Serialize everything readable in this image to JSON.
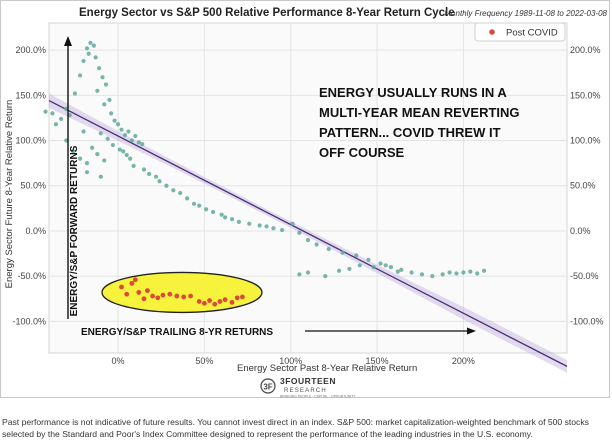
{
  "chart_data": {
    "type": "scatter",
    "title": "Energy Sector vs S&P 500 Relative Performance 8-Year Return Cycle",
    "subtitle": "Monthly Frequency 1989-11-08 to 2022-03-08",
    "xlabel": "Energy Sector Past 8-Year Relative Return",
    "ylabel": "Energy Sector Future 8-Year Relative Return",
    "xlim": [
      -0.4,
      2.6
    ],
    "ylim": [
      -1.35,
      2.3
    ],
    "x_ticks": [
      "0%",
      "50%",
      "100%",
      "150%",
      "200%"
    ],
    "y_ticks": [
      "200.0%",
      "150.0%",
      "100.0%",
      "50.0%",
      "0.0%",
      "-50.0%",
      "-100.0%"
    ],
    "grid": true,
    "legend_position": "top-right",
    "regression": {
      "slope": -0.98,
      "intercept": 1.05
    },
    "series": [
      {
        "name": "",
        "color": "#5fa89a",
        "points": [
          [
            -0.42,
            1.32
          ],
          [
            -0.38,
            1.3
          ],
          [
            -0.33,
            1.24
          ],
          [
            -0.36,
            1.18
          ],
          [
            -0.3,
            1.35
          ],
          [
            -0.28,
            1.28
          ],
          [
            -0.25,
            1.52
          ],
          [
            -0.22,
            1.72
          ],
          [
            -0.2,
            1.88
          ],
          [
            -0.18,
            2.02
          ],
          [
            -0.16,
            2.08
          ],
          [
            -0.14,
            2.05
          ],
          [
            -0.17,
            1.96
          ],
          [
            -0.13,
            1.92
          ],
          [
            -0.11,
            1.8
          ],
          [
            -0.12,
            1.55
          ],
          [
            -0.09,
            1.7
          ],
          [
            -0.07,
            1.62
          ],
          [
            -0.05,
            1.45
          ],
          [
            -0.08,
            1.4
          ],
          [
            -0.04,
            1.3
          ],
          [
            -0.02,
            1.22
          ],
          [
            0.0,
            1.18
          ],
          [
            0.02,
            1.12
          ],
          [
            0.04,
            1.06
          ],
          [
            0.06,
            1.1
          ],
          [
            0.08,
            1.0
          ],
          [
            0.1,
            1.05
          ],
          [
            0.12,
            0.98
          ],
          [
            0.14,
            0.96
          ],
          [
            -0.1,
            1.08
          ],
          [
            -0.06,
            1.02
          ],
          [
            -0.03,
            0.95
          ],
          [
            0.01,
            0.9
          ],
          [
            0.03,
            0.88
          ],
          [
            0.05,
            0.84
          ],
          [
            0.07,
            0.8
          ],
          [
            -0.15,
            0.92
          ],
          [
            -0.12,
            0.85
          ],
          [
            -0.08,
            0.78
          ],
          [
            -0.18,
            0.75
          ],
          [
            -0.22,
            0.8
          ],
          [
            -0.26,
            0.88
          ],
          [
            -0.3,
            1.0
          ],
          [
            -0.2,
            1.1
          ],
          [
            0.09,
            0.72
          ],
          [
            0.15,
            0.68
          ],
          [
            0.18,
            0.63
          ],
          [
            0.22,
            0.6
          ],
          [
            -0.1,
            0.6
          ],
          [
            -0.18,
            0.65
          ],
          [
            0.24,
            0.55
          ],
          [
            0.28,
            0.5
          ],
          [
            0.32,
            0.45
          ],
          [
            0.36,
            0.42
          ],
          [
            0.4,
            0.36
          ],
          [
            0.44,
            0.3
          ],
          [
            0.47,
            0.28
          ],
          [
            0.51,
            0.24
          ],
          [
            0.55,
            0.21
          ],
          [
            0.6,
            0.18
          ],
          [
            0.62,
            0.15
          ],
          [
            0.66,
            0.13
          ],
          [
            0.7,
            0.1
          ],
          [
            0.76,
            0.08
          ],
          [
            0.82,
            0.06
          ],
          [
            0.86,
            0.05
          ],
          [
            0.9,
            0.03
          ],
          [
            0.95,
            0.01
          ],
          [
            1.01,
            0.08
          ],
          [
            1.05,
            -0.02
          ],
          [
            1.1,
            -0.1
          ],
          [
            1.15,
            -0.15
          ],
          [
            1.22,
            -0.2
          ],
          [
            1.3,
            -0.24
          ],
          [
            1.38,
            -0.27
          ],
          [
            1.45,
            -0.32
          ],
          [
            1.52,
            -0.36
          ],
          [
            1.58,
            -0.4
          ],
          [
            1.64,
            -0.43
          ],
          [
            1.7,
            -0.46
          ],
          [
            1.76,
            -0.48
          ],
          [
            1.82,
            -0.5
          ],
          [
            1.88,
            -0.48
          ],
          [
            1.92,
            -0.46
          ],
          [
            1.96,
            -0.47
          ],
          [
            2.0,
            -0.46
          ],
          [
            2.04,
            -0.45
          ],
          [
            2.08,
            -0.47
          ],
          [
            2.12,
            -0.44
          ],
          [
            1.05,
            -0.48
          ],
          [
            1.1,
            -0.46
          ],
          [
            1.2,
            -0.5
          ],
          [
            1.28,
            -0.44
          ],
          [
            1.34,
            -0.42
          ],
          [
            1.4,
            -0.38
          ],
          [
            1.48,
            -0.4
          ],
          [
            1.55,
            -0.38
          ],
          [
            1.62,
            -0.45
          ]
        ]
      },
      {
        "name": "Post COVID",
        "color": "#d94a3a",
        "points": [
          [
            0.02,
            -0.62
          ],
          [
            0.05,
            -0.7
          ],
          [
            0.08,
            -0.58
          ],
          [
            0.1,
            -0.54
          ],
          [
            0.12,
            -0.68
          ],
          [
            0.15,
            -0.75
          ],
          [
            0.17,
            -0.66
          ],
          [
            0.2,
            -0.72
          ],
          [
            0.23,
            -0.74
          ],
          [
            0.26,
            -0.71
          ],
          [
            0.3,
            -0.7
          ],
          [
            0.34,
            -0.72
          ],
          [
            0.38,
            -0.73
          ],
          [
            0.42,
            -0.72
          ],
          [
            0.47,
            -0.78
          ],
          [
            0.5,
            -0.8
          ],
          [
            0.53,
            -0.77
          ],
          [
            0.56,
            -0.81
          ],
          [
            0.59,
            -0.78
          ],
          [
            0.62,
            -0.76
          ],
          [
            0.66,
            -0.79
          ],
          [
            0.69,
            -0.74
          ],
          [
            0.72,
            -0.73
          ]
        ]
      }
    ],
    "annotations": {
      "main": [
        "ENERGY USUALLY RUNS IN A",
        "MULTI-YEAR MEAN REVERTING",
        "PATTERN... COVID THREW IT",
        "OFF COURSE"
      ],
      "forward_arrow": "ENERGY/S&P FORWARD RETURNS",
      "trailing_arrow": "ENERGY/S&P TRAILING 8-YR RETURNS"
    }
  },
  "logo": {
    "brand": "3FOURTEEN",
    "subbrand": "RESEARCH",
    "tagline": "BRINGING PEOPLE · CAPITAL · OPPORTUNITY"
  },
  "footnote": "Past performance is not indicative of future results. You cannot invest direct in an index. S&P 500: market capitalization-weighted benchmark of 500 stocks selected by the Standard and Poor's Index Committee designed to represent the performance of the leading industries in the U.S. economy."
}
